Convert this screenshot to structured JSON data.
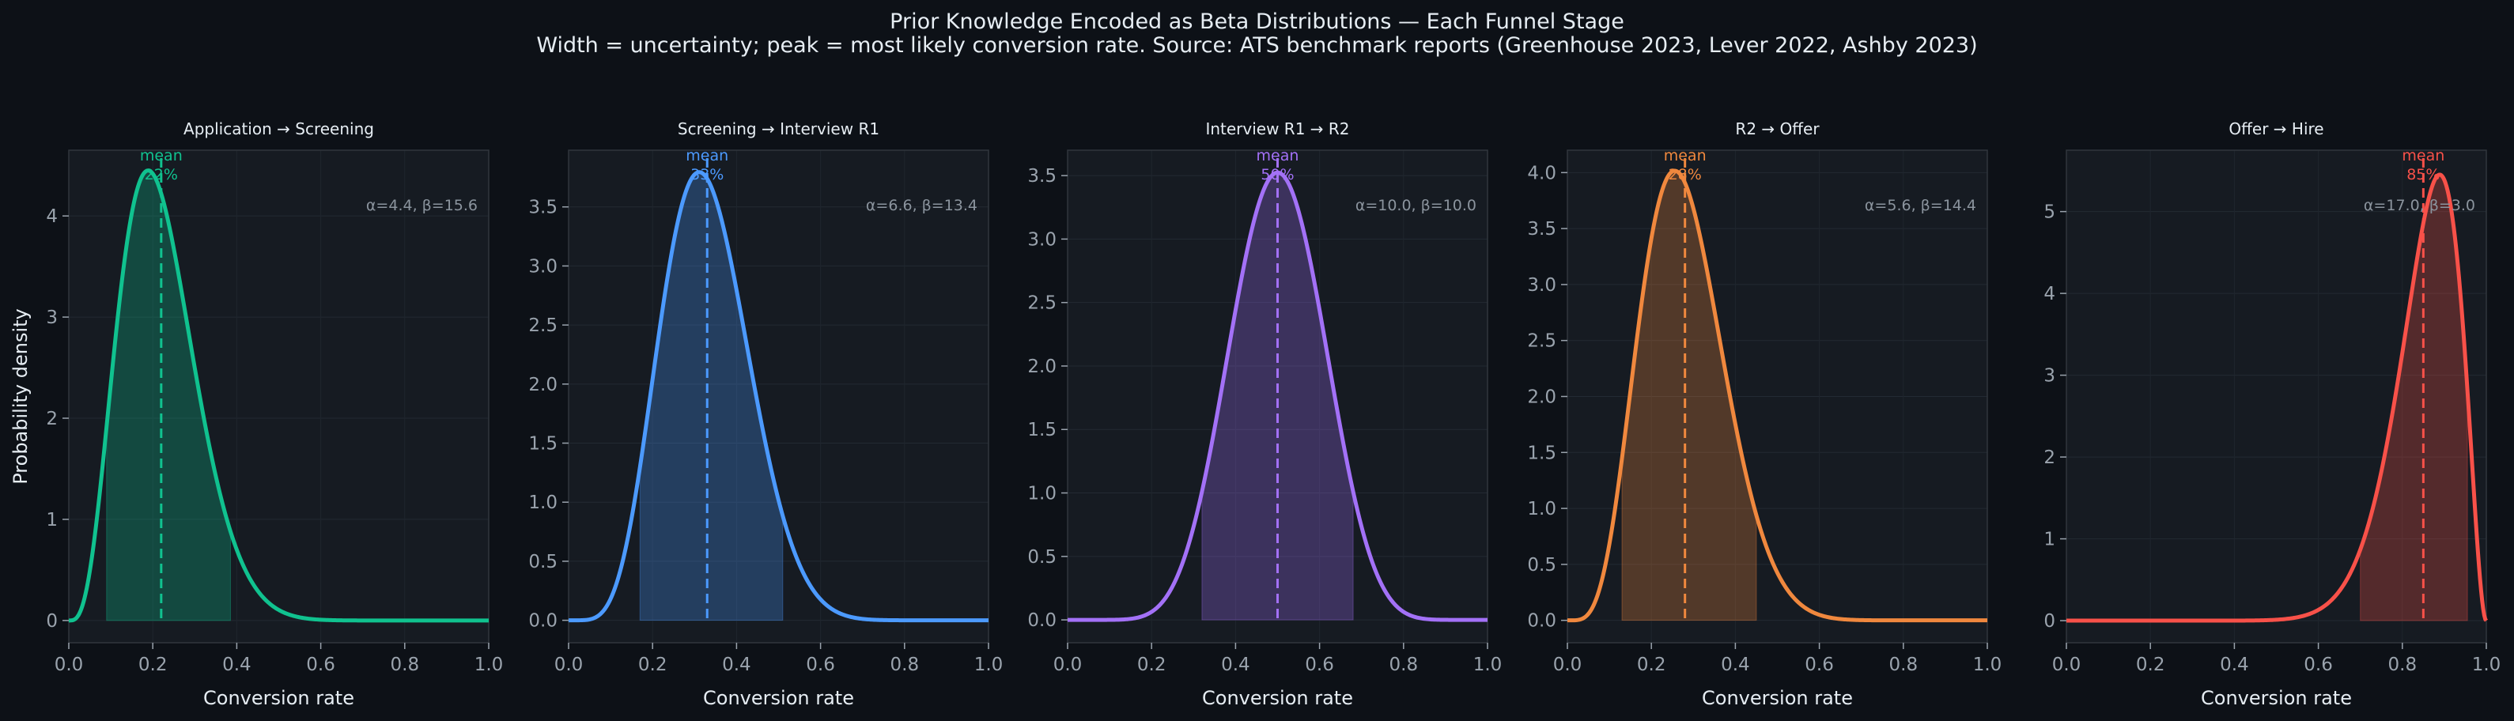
{
  "figure": {
    "title": "Prior Knowledge Encoded as Beta Distributions — Each Funnel Stage",
    "subtitle": "Width = uncertainty; peak = most likely conversion rate. Source: ATS benchmark reports (Greenhouse 2023, Lever 2022, Ashby 2023)"
  },
  "colors": {
    "background": "#0d1117",
    "panel": "#161b22",
    "axis_text": "#9aa3ad",
    "title_text": "#e6edf3"
  },
  "chart_data": [
    {
      "type": "area",
      "title": "Application → Screening",
      "alpha": 4.4,
      "beta": 15.6,
      "param_label": "α=4.4, β=15.6",
      "mean_label": [
        "mean",
        "22%"
      ],
      "mean": 0.22,
      "shaded_interval": [
        0.09,
        0.385
      ],
      "color": "#10c28f",
      "xlabel": "Conversion rate",
      "ylabel": "Probability density",
      "xlim": [
        0,
        1
      ],
      "ylim": [
        -0.22,
        4.65
      ],
      "xticks": [
        "0.0",
        "0.2",
        "0.4",
        "0.6",
        "0.8",
        "1.0"
      ],
      "xtick_values": [
        0,
        0.2,
        0.4,
        0.6,
        0.8,
        1.0
      ],
      "yticks": [
        "0",
        "1",
        "2",
        "3",
        "4"
      ],
      "ytick_values": [
        0,
        1,
        2,
        3,
        4
      ],
      "grid": true
    },
    {
      "type": "area",
      "title": "Screening → Interview R1",
      "alpha": 6.6,
      "beta": 13.4,
      "param_label": "α=6.6, β=13.4",
      "mean_label": [
        "mean",
        "33%"
      ],
      "mean": 0.33,
      "shaded_interval": [
        0.17,
        0.51
      ],
      "color": "#4c9aff",
      "xlabel": "Conversion rate",
      "ylabel": "",
      "xlim": [
        0,
        1
      ],
      "ylim": [
        -0.19,
        3.98
      ],
      "xticks": [
        "0.0",
        "0.2",
        "0.4",
        "0.6",
        "0.8",
        "1.0"
      ],
      "xtick_values": [
        0,
        0.2,
        0.4,
        0.6,
        0.8,
        1.0
      ],
      "yticks": [
        "0.0",
        "0.5",
        "1.0",
        "1.5",
        "2.0",
        "2.5",
        "3.0",
        "3.5"
      ],
      "ytick_values": [
        0,
        0.5,
        1,
        1.5,
        2,
        2.5,
        3,
        3.5
      ],
      "grid": true
    },
    {
      "type": "area",
      "title": "Interview R1 → R2",
      "alpha": 10.0,
      "beta": 10.0,
      "param_label": "α=10.0, β=10.0",
      "mean_label": [
        "mean",
        "50%"
      ],
      "mean": 0.5,
      "shaded_interval": [
        0.32,
        0.68
      ],
      "color": "#a371f7",
      "xlabel": "Conversion rate",
      "ylabel": "",
      "xlim": [
        0,
        1
      ],
      "ylim": [
        -0.18,
        3.7
      ],
      "xticks": [
        "0.0",
        "0.2",
        "0.4",
        "0.6",
        "0.8",
        "1.0"
      ],
      "xtick_values": [
        0,
        0.2,
        0.4,
        0.6,
        0.8,
        1.0
      ],
      "yticks": [
        "0.0",
        "0.5",
        "1.0",
        "1.5",
        "2.0",
        "2.5",
        "3.0",
        "3.5"
      ],
      "ytick_values": [
        0,
        0.5,
        1,
        1.5,
        2,
        2.5,
        3,
        3.5
      ],
      "grid": true
    },
    {
      "type": "area",
      "title": "R2 → Offer",
      "alpha": 5.6,
      "beta": 14.4,
      "param_label": "α=5.6, β=14.4",
      "mean_label": [
        "mean",
        "28%"
      ],
      "mean": 0.28,
      "shaded_interval": [
        0.13,
        0.45
      ],
      "color": "#f0883e",
      "xlabel": "Conversion rate",
      "ylabel": "",
      "xlim": [
        0,
        1
      ],
      "ylim": [
        -0.2,
        4.2
      ],
      "xticks": [
        "0.0",
        "0.2",
        "0.4",
        "0.6",
        "0.8",
        "1.0"
      ],
      "xtick_values": [
        0,
        0.2,
        0.4,
        0.6,
        0.8,
        1.0
      ],
      "yticks": [
        "0.0",
        "0.5",
        "1.0",
        "1.5",
        "2.0",
        "2.5",
        "3.0",
        "3.5",
        "4.0"
      ],
      "ytick_values": [
        0,
        0.5,
        1,
        1.5,
        2,
        2.5,
        3,
        3.5,
        4
      ],
      "grid": true
    },
    {
      "type": "area",
      "title": "Offer → Hire",
      "alpha": 17.0,
      "beta": 3.0,
      "param_label": "α=17.0, β=3.0",
      "mean_label": [
        "mean",
        "85%"
      ],
      "mean": 0.85,
      "shaded_interval": [
        0.7,
        0.955
      ],
      "color": "#f85149",
      "xlabel": "Conversion rate",
      "ylabel": "",
      "xlim": [
        0,
        1
      ],
      "ylim": [
        -0.27,
        5.75
      ],
      "xticks": [
        "0.0",
        "0.2",
        "0.4",
        "0.6",
        "0.8",
        "1.0"
      ],
      "xtick_values": [
        0,
        0.2,
        0.4,
        0.6,
        0.8,
        1.0
      ],
      "yticks": [
        "0",
        "1",
        "2",
        "3",
        "4",
        "5"
      ],
      "ytick_values": [
        0,
        1,
        2,
        3,
        4,
        5
      ],
      "grid": true
    }
  ]
}
